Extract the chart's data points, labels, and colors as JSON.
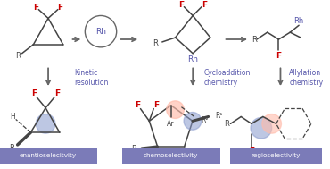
{
  "bg_color": "#ffffff",
  "label_bg_color": "#7b7bb8",
  "label_text_color": "#ffffff",
  "label_texts": [
    "enantioselecitvity",
    "chemoselectivity",
    "regioselectivity"
  ],
  "arrow_color": "#666666",
  "red": "#cc0000",
  "blue_purple": "#5555aa",
  "dark_gray": "#444444",
  "blue_dot_color": "#8899cc",
  "pink_dot_color": "#ffbbaa"
}
